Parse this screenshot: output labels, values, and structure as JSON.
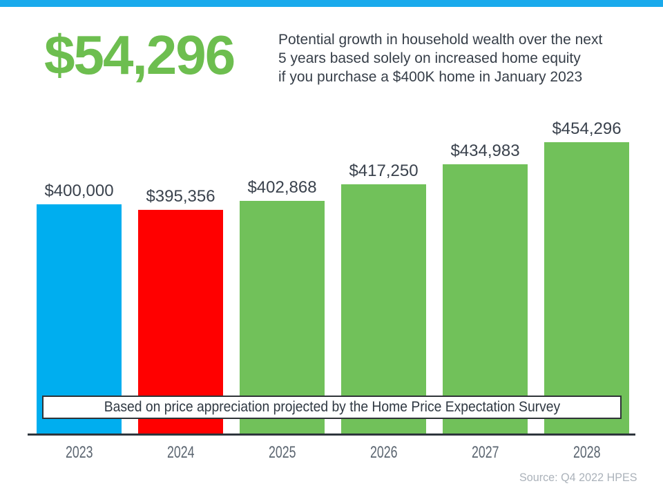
{
  "page": {
    "background": "#ffffff",
    "top_strip_color": "#19aaec"
  },
  "headline": {
    "value": "$54,296",
    "color": "#6dbe4f"
  },
  "description": {
    "lines": [
      "Potential growth in household wealth over the next",
      "5 years based solely on increased home equity",
      "if you purchase a $400K home in January 2023"
    ],
    "color": "#363e48"
  },
  "banner": {
    "text": "Based on price appreciation projected by the Home Price Expectation Survey"
  },
  "source": {
    "text": "Source: Q4 2022 HPES"
  },
  "chart_data": {
    "type": "bar",
    "title": "",
    "xlabel": "",
    "ylabel": "",
    "categories": [
      "2023",
      "2024",
      "2025",
      "2026",
      "2027",
      "2028"
    ],
    "values": [
      400000,
      395356,
      402868,
      417250,
      434983,
      454296
    ],
    "value_labels": [
      "$400,000",
      "$395,356",
      "$402,868",
      "$417,250",
      "$434,983",
      "$454,296"
    ],
    "bar_colors": [
      "#00aeef",
      "#ff0000",
      "#71c15a",
      "#71c15a",
      "#71c15a",
      "#71c15a"
    ],
    "ylim": [
      198400,
      454296
    ],
    "grid": false,
    "legend": "none",
    "axis_color": "#2e353c",
    "annotation": "Based on price appreciation projected by the Home Price Expectation Survey"
  }
}
